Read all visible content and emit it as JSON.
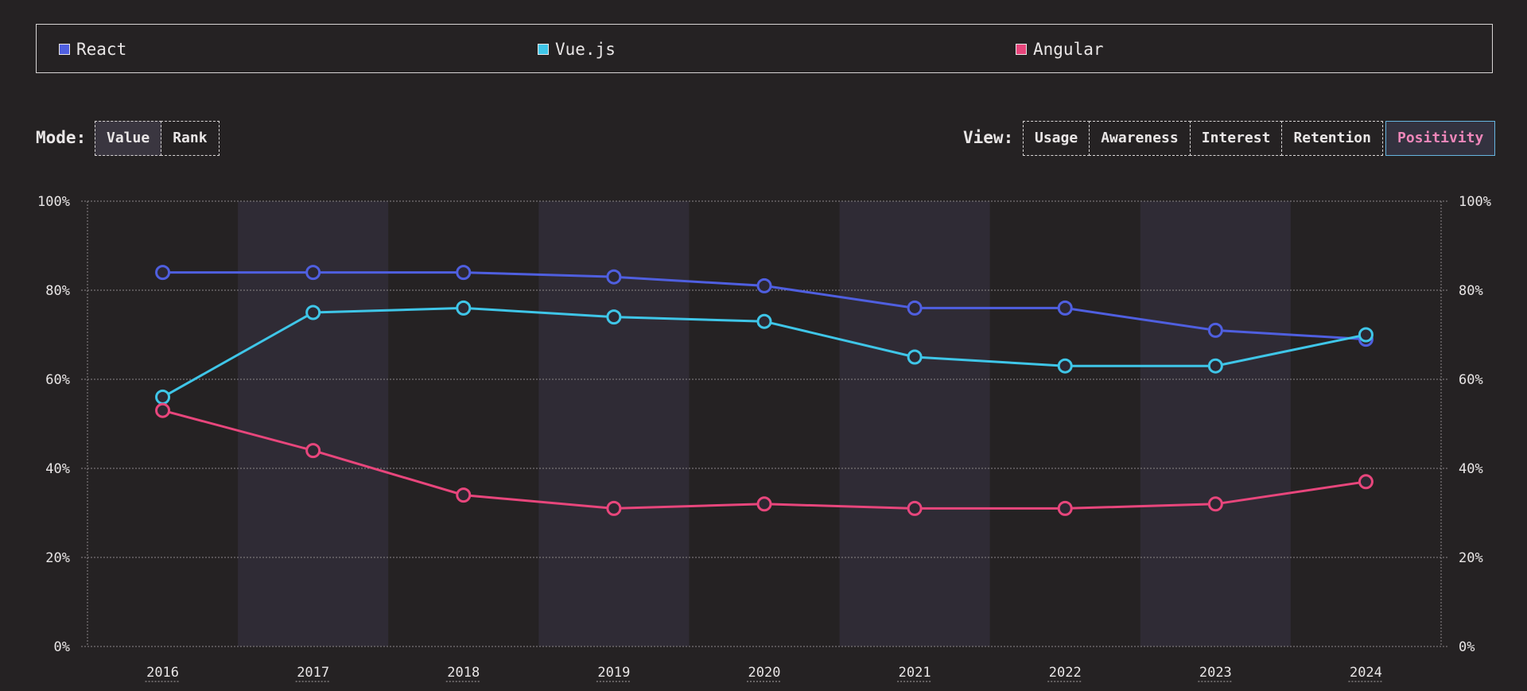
{
  "legend": [
    {
      "name": "React",
      "color": "#4f5fe0"
    },
    {
      "name": "Vue.js",
      "color": "#3fc6e8"
    },
    {
      "name": "Angular",
      "color": "#e8467c"
    }
  ],
  "controls": {
    "mode_label": "Mode:",
    "modes": [
      "Value",
      "Rank"
    ],
    "active_mode": "Value",
    "view_label": "View:",
    "views": [
      "Usage",
      "Awareness",
      "Interest",
      "Retention",
      "Positivity"
    ],
    "active_view": "Positivity"
  },
  "chart_data": {
    "type": "line",
    "x": [
      "2016",
      "2017",
      "2018",
      "2019",
      "2020",
      "2021",
      "2022",
      "2023",
      "2024"
    ],
    "series": [
      {
        "name": "React",
        "color": "#4f5fe0",
        "values": [
          84,
          84,
          84,
          83,
          81,
          76,
          76,
          71,
          69
        ]
      },
      {
        "name": "Vue.js",
        "color": "#3fc6e8",
        "values": [
          56,
          75,
          76,
          74,
          73,
          65,
          63,
          63,
          70
        ]
      },
      {
        "name": "Angular",
        "color": "#e8467c",
        "values": [
          53,
          44,
          34,
          31,
          32,
          31,
          31,
          32,
          37
        ]
      }
    ],
    "ylim": [
      0,
      100
    ],
    "yticks": [
      "0%",
      "20%",
      "40%",
      "60%",
      "80%",
      "100%"
    ],
    "ytick_values": [
      0,
      20,
      40,
      60,
      80,
      100
    ],
    "grid": true,
    "alternating_bands": true,
    "legend_position": "top"
  }
}
